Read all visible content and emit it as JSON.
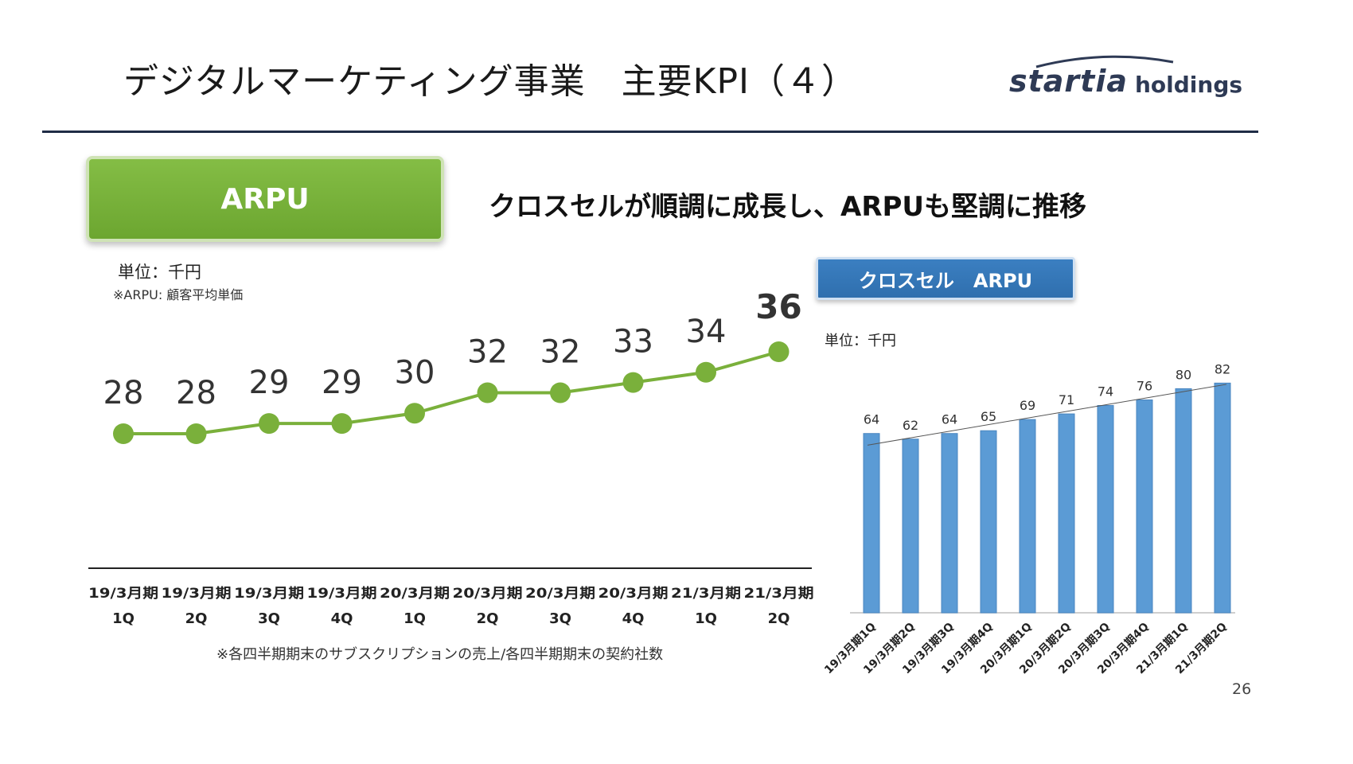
{
  "title": "デジタルマーケティング事業　主要KPI（４）",
  "logo": {
    "main": "startia",
    "sub": "holdings"
  },
  "badge": "ARPU",
  "headline": "クロスセルが順調に成長し、ARPUも堅調に推移",
  "unit_left": "単位：千円",
  "note_left": "※ARPU: 顧客平均単価",
  "footnote": "※各四半期期末のサブスクリプションの売上/各四半期期末の契約社数",
  "crosssell_title": "クロスセル　ARPU",
  "unit_right": "単位：千円",
  "page_number": "26",
  "colors": {
    "line": "#7ab03b",
    "bar": "#5b9bd5",
    "navy": "#1f2c45",
    "badge_green": "#76b03a",
    "badge_blue": "#2f6fae"
  },
  "chart_data": [
    {
      "type": "line",
      "title": "ARPU",
      "categories": [
        [
          "19/3月期",
          "1Q"
        ],
        [
          "19/3月期",
          "2Q"
        ],
        [
          "19/3月期",
          "3Q"
        ],
        [
          "19/3月期",
          "4Q"
        ],
        [
          "20/3月期",
          "1Q"
        ],
        [
          "20/3月期",
          "2Q"
        ],
        [
          "20/3月期",
          "3Q"
        ],
        [
          "20/3月期",
          "4Q"
        ],
        [
          "21/3月期",
          "1Q"
        ],
        [
          "21/3月期",
          "2Q"
        ]
      ],
      "values": [
        28,
        28,
        29,
        29,
        30,
        32,
        32,
        33,
        34,
        36
      ],
      "ylabel": "千円"
    },
    {
      "type": "bar",
      "title": "クロスセル　ARPU",
      "categories": [
        "19/3月期1Q",
        "19/3月期2Q",
        "19/3月期3Q",
        "19/3月期4Q",
        "20/3月期1Q",
        "20/3月期2Q",
        "20/3月期3Q",
        "20/3月期4Q",
        "21/3月期1Q",
        "21/3月期2Q"
      ],
      "values": [
        64,
        62,
        64,
        65,
        69,
        71,
        74,
        76,
        80,
        82
      ],
      "trendline": true,
      "ylabel": "千円"
    }
  ]
}
